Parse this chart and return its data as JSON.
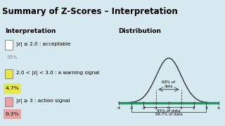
{
  "title": "Summary of Z-Scores – Interpretation",
  "bg_color": "#d6e8f0",
  "title_bg": "#b0cfe0",
  "left_header": "Interpretation",
  "right_header": "Distribution",
  "items": [
    {
      "box_color": "#ffffff",
      "box_edge": "#888888",
      "label": "|z| ≤ 2.0 : acceptable",
      "pct": "95%",
      "pct_color": "#888888",
      "has_badge": false
    },
    {
      "box_color": "#e8e840",
      "box_edge": "#888888",
      "label": "2.0 < |z| < 3.0 : a warning signal",
      "pct": "4.7%",
      "pct_color": "#444444",
      "pct_bg": "#e8e840",
      "has_badge": true
    },
    {
      "box_color": "#f0a0a0",
      "box_edge": "#888888",
      "label": "|z| ≥ 3 : action signal",
      "pct": "0.3%",
      "pct_color": "#444444",
      "pct_bg": "#f0a0a0",
      "has_badge": true
    }
  ],
  "dist_xticks": [
    -4,
    -3,
    -2,
    -1,
    0,
    1,
    2,
    3,
    4
  ],
  "annotation_68": "68% of\ndata",
  "annotation_95": "95% of data",
  "annotation_997": "99.7% of data",
  "curve_color": "#333333",
  "bar_color": "#2a9060",
  "bracket_color": "#444444"
}
